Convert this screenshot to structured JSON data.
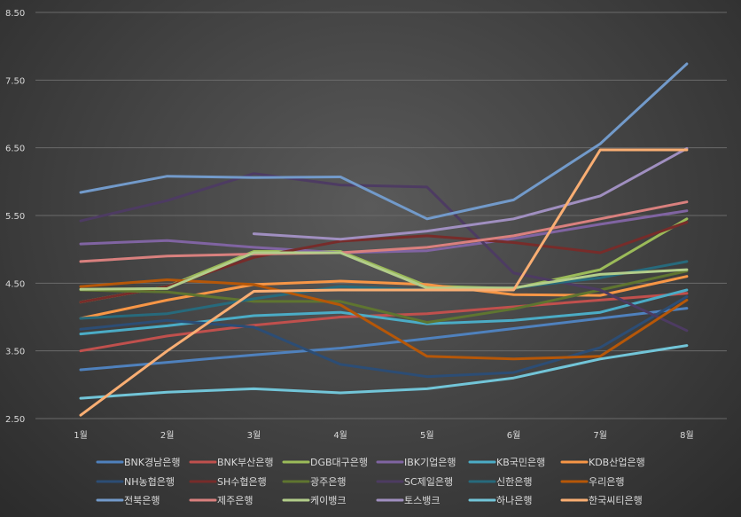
{
  "chart_data": {
    "type": "line",
    "categories": [
      "1월",
      "2월",
      "3월",
      "4월",
      "5월",
      "6월",
      "7월",
      "8월"
    ],
    "ylim": [
      2.5,
      8.5
    ],
    "yticks": [
      "2.50",
      "3.50",
      "4.50",
      "5.50",
      "6.50",
      "7.50",
      "8.50"
    ],
    "grid": "horizontal",
    "legend_position": "bottom",
    "series": [
      {
        "name": "BNK경남은행",
        "color": "#4f81bd",
        "values": [
          3.22,
          3.33,
          3.44,
          3.54,
          3.68,
          3.83,
          3.98,
          4.13
        ]
      },
      {
        "name": "BNK부산은행",
        "color": "#c0504d",
        "values": [
          3.5,
          3.72,
          3.88,
          4.0,
          4.05,
          4.15,
          4.25,
          4.35
        ]
      },
      {
        "name": "DGB대구은행",
        "color": "#9bbb59",
        "values": [
          4.22,
          4.45,
          4.97,
          4.97,
          4.46,
          4.42,
          4.7,
          5.45
        ]
      },
      {
        "name": "IBK기업은행",
        "color": "#8064a2",
        "values": [
          5.08,
          5.13,
          5.03,
          4.95,
          4.98,
          5.16,
          5.37,
          5.57
        ]
      },
      {
        "name": "KB국민은행",
        "color": "#4bacc6",
        "values": [
          3.75,
          3.87,
          4.02,
          4.07,
          3.9,
          3.95,
          4.07,
          4.4
        ]
      },
      {
        "name": "KDB산업은행",
        "color": "#f79646",
        "values": [
          3.98,
          4.25,
          4.48,
          4.53,
          4.48,
          4.33,
          4.32,
          4.6
        ]
      },
      {
        "name": "NH농협은행",
        "color": "#2c4d75",
        "values": [
          3.82,
          3.95,
          3.85,
          3.3,
          3.12,
          3.18,
          3.55,
          4.3
        ]
      },
      {
        "name": "SH수협은행",
        "color": "#772c2a",
        "values": [
          4.22,
          4.45,
          4.88,
          5.12,
          5.2,
          5.1,
          4.95,
          5.4
        ]
      },
      {
        "name": "광주은행",
        "color": "#5f7530",
        "values": [
          4.4,
          4.37,
          4.23,
          4.23,
          3.92,
          4.12,
          4.4,
          4.68
        ]
      },
      {
        "name": "SC제일은행",
        "color": "#4d3b62",
        "values": [
          5.42,
          5.72,
          6.12,
          5.95,
          5.92,
          4.65,
          4.4,
          3.8
        ]
      },
      {
        "name": "신한은행",
        "color": "#276a7c",
        "values": [
          3.98,
          4.05,
          4.27,
          4.45,
          4.4,
          4.43,
          4.58,
          4.82
        ]
      },
      {
        "name": "우리은행",
        "color": "#b65708",
        "values": [
          4.45,
          4.55,
          4.48,
          4.18,
          3.42,
          3.38,
          3.42,
          4.25
        ]
      },
      {
        "name": "전북은행",
        "color": "#729aca",
        "values": [
          5.84,
          6.08,
          6.06,
          6.07,
          5.45,
          5.73,
          6.56,
          7.74
        ]
      },
      {
        "name": "제주은행",
        "color": "#d9807e",
        "values": [
          4.82,
          4.9,
          4.93,
          4.95,
          5.03,
          5.2,
          5.45,
          5.7
        ]
      },
      {
        "name": "케이뱅크",
        "color": "#b2cd8a",
        "values": [
          4.41,
          4.42,
          4.95,
          4.95,
          4.43,
          4.43,
          4.63,
          4.7
        ]
      },
      {
        "name": "토스뱅크",
        "color": "#a08fc0",
        "values": [
          null,
          null,
          5.23,
          5.15,
          5.27,
          5.45,
          5.79,
          6.49
        ]
      },
      {
        "name": "하나은행",
        "color": "#72c5d8",
        "values": [
          2.8,
          2.89,
          2.94,
          2.88,
          2.94,
          3.1,
          3.38,
          3.58
        ]
      },
      {
        "name": "한국씨티은행",
        "color": "#f9ae73",
        "values": [
          2.55,
          3.5,
          4.38,
          4.4,
          4.4,
          4.4,
          6.47,
          6.47
        ]
      }
    ]
  }
}
